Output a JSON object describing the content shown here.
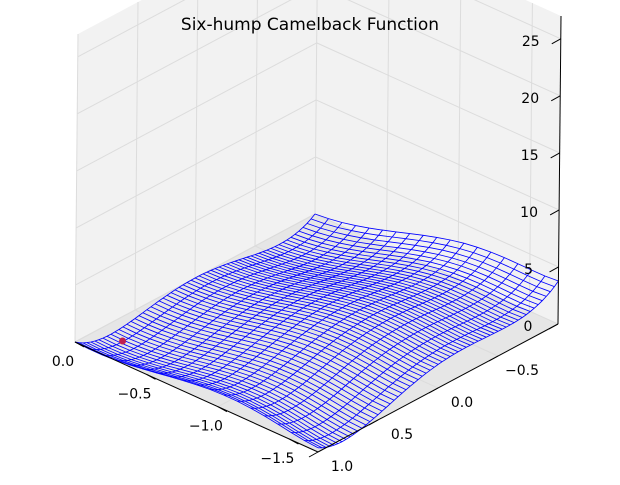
{
  "chart_data": {
    "type": "surface-wireframe",
    "title": "Six-hump Camelback Function",
    "function": "z = (4 - 2.1 x^2 + x^4/3) x^2 + x y + (-4 + 4 y^2) y^2",
    "x_range": [
      -1.7,
      0.0
    ],
    "y_range": [
      -1.0,
      1.0
    ],
    "z_range": [
      0,
      27
    ],
    "x_ticks": [
      -1.5,
      -1.0,
      -0.5,
      0.0
    ],
    "x_tick_labels": [
      "−1.5",
      "−1.0",
      "−0.5",
      "0.0"
    ],
    "y_ticks": [
      -0.5,
      0.0,
      0.5,
      1.0
    ],
    "y_tick_labels": [
      "−0.5",
      "0.0",
      "0.5",
      "1.0"
    ],
    "z_ticks": [
      0,
      5,
      10,
      15,
      20,
      25
    ],
    "z_tick_labels": [
      "0",
      "5",
      "10",
      "15",
      "20",
      "25"
    ],
    "grid_x_count": 18,
    "grid_y_count": 60,
    "wire_color": "#0000ff",
    "pane_color": "#f2f2f2",
    "grid": true,
    "marker": {
      "x": -0.09,
      "y": 0.71,
      "color": "#c02050"
    }
  }
}
